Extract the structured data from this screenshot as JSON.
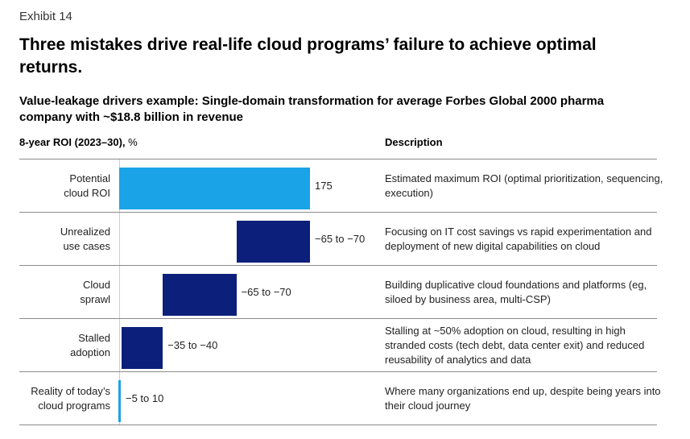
{
  "header": {
    "exhibit": "Exhibit 14",
    "title": "Three mistakes drive real-life cloud programs’ failure to achieve optimal returns.",
    "subtitle": "Value-leakage drivers example: Single-domain transformation for average Forbes Global 2000 pharma company with ~$18.8 billion in revenue"
  },
  "columns": {
    "roi_label": "8-year ROI (2023–30),",
    "roi_unit": "%",
    "description": "Description"
  },
  "colors": {
    "potential": "#1aa3e6",
    "leakage": "#0c1f7a",
    "reality": "#1aa3e6",
    "grid": "#8a8a8a"
  },
  "chart_data": {
    "type": "bar",
    "subtype": "waterfall",
    "unit": "%",
    "categories": [
      "Potential cloud ROI",
      "Unrealized use cases",
      "Cloud sprawl",
      "Stalled adoption",
      "Reality of today’s cloud programs"
    ],
    "values": [
      175,
      -67.5,
      -67.5,
      -37.5,
      2.5
    ],
    "ranges": [
      null,
      [
        -65,
        -70
      ],
      [
        -65,
        -70
      ],
      [
        -35,
        -40
      ],
      [
        -5,
        10
      ]
    ],
    "value_labels": [
      "175",
      "−65 to −70",
      "−65 to −70",
      "−35 to −40",
      "−5 to 10"
    ],
    "descriptions": [
      "Estimated maximum ROI (optimal prioritization, sequencing, execution)",
      "Focusing on IT cost savings vs rapid experimentation and deployment of new digital capabilities on cloud",
      "Building duplicative cloud foundations and platforms (eg, siloed by business area, multi-CSP)",
      "Stalling at ~50% adoption on cloud, resulting in high stranded costs (tech debt, data center exit) and reduced reusability of analytics and data",
      "Where many organizations end up, despite being years into their cloud journey"
    ]
  },
  "rows": [
    {
      "label": "Potential\ncloud ROI"
    },
    {
      "label": "Unrealized\nuse cases"
    },
    {
      "label": "Cloud\nsprawl"
    },
    {
      "label": "Stalled\nadoption"
    },
    {
      "label": "Reality of today’s\ncloud programs"
    }
  ]
}
